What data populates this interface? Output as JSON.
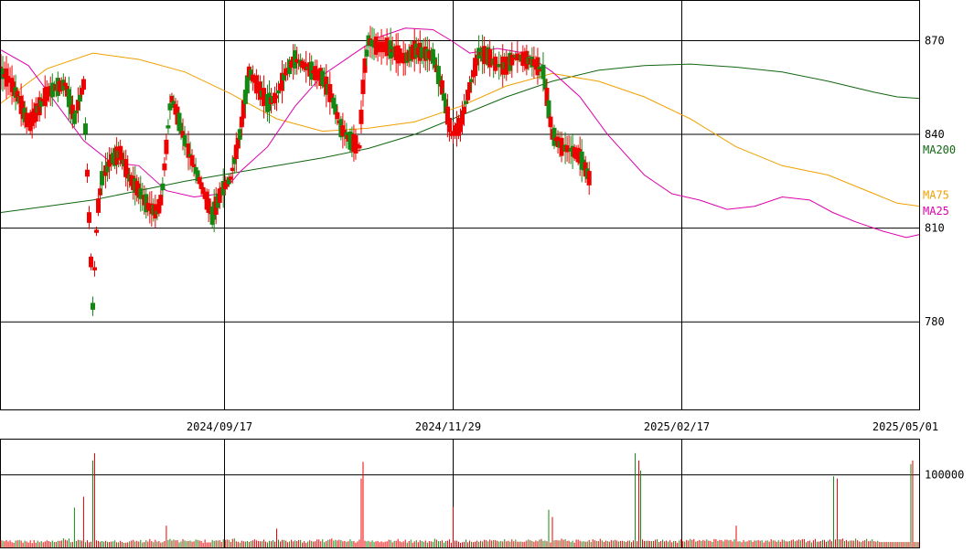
{
  "chart_data": {
    "type": "candlestick",
    "price_axis": {
      "ylim": [
        752,
        883
      ],
      "ticks": [
        870,
        840,
        810,
        780
      ]
    },
    "volume_axis": {
      "ylim": [
        0,
        150000
      ],
      "ticks": [
        100000
      ]
    },
    "date_ticks": [
      "2024/09/17",
      "2024/11/29",
      "2025/02/17",
      "2025/05/01"
    ],
    "colors": {
      "up": "#138813",
      "down": "#ee0000",
      "ma25": "#dd00aa",
      "ma75": "#f0a000",
      "ma200": "#116611",
      "grid": "#000000"
    },
    "moving_averages": [
      {
        "name": "MA200",
        "color": "#116611",
        "values": [
          [
            0,
            815
          ],
          [
            50,
            817
          ],
          [
            100,
            819
          ],
          [
            150,
            822
          ],
          [
            200,
            825
          ],
          [
            250,
            827.5
          ],
          [
            300,
            830
          ],
          [
            350,
            832.5
          ],
          [
            400,
            835.5
          ],
          [
            450,
            840
          ],
          [
            500,
            846
          ],
          [
            550,
            852
          ],
          [
            600,
            857
          ],
          [
            650,
            860.5
          ],
          [
            700,
            862
          ],
          [
            750,
            862.5
          ],
          [
            800,
            861.5
          ],
          [
            850,
            860
          ],
          [
            900,
            857
          ],
          [
            950,
            853.5
          ],
          [
            975,
            852
          ],
          [
            1000,
            851.5
          ]
        ]
      },
      {
        "name": "MA75",
        "color": "#f0a000",
        "values": [
          [
            0,
            850
          ],
          [
            50,
            861
          ],
          [
            100,
            866
          ],
          [
            150,
            864
          ],
          [
            200,
            860
          ],
          [
            250,
            853
          ],
          [
            300,
            845
          ],
          [
            350,
            841
          ],
          [
            400,
            842
          ],
          [
            450,
            844
          ],
          [
            500,
            849
          ],
          [
            550,
            855.5
          ],
          [
            600,
            859.5
          ],
          [
            650,
            857
          ],
          [
            700,
            852
          ],
          [
            750,
            845
          ],
          [
            800,
            836
          ],
          [
            850,
            830
          ],
          [
            900,
            827
          ],
          [
            950,
            821
          ],
          [
            975,
            818
          ],
          [
            1000,
            817
          ]
        ]
      },
      {
        "name": "MA25",
        "color": "#dd00aa",
        "values": [
          [
            0,
            867
          ],
          [
            30,
            862
          ],
          [
            60,
            850
          ],
          [
            90,
            838
          ],
          [
            120,
            831
          ],
          [
            150,
            830
          ],
          [
            180,
            822
          ],
          [
            210,
            820
          ],
          [
            240,
            821
          ],
          [
            260,
            828
          ],
          [
            290,
            836
          ],
          [
            320,
            849
          ],
          [
            350,
            859
          ],
          [
            380,
            865
          ],
          [
            410,
            871
          ],
          [
            440,
            874
          ],
          [
            470,
            873.5
          ],
          [
            490,
            870
          ],
          [
            510,
            866
          ],
          [
            540,
            867.5
          ],
          [
            570,
            866
          ],
          [
            600,
            860
          ],
          [
            630,
            852
          ],
          [
            660,
            840
          ],
          [
            700,
            827
          ],
          [
            730,
            821
          ],
          [
            760,
            819
          ],
          [
            790,
            816
          ],
          [
            820,
            817
          ],
          [
            850,
            820
          ],
          [
            880,
            819
          ],
          [
            905,
            815
          ],
          [
            930,
            812
          ],
          [
            960,
            809
          ],
          [
            985,
            807
          ],
          [
            1000,
            808
          ]
        ]
      }
    ],
    "ma_labels": [
      {
        "text": "MA200",
        "color": "#116611",
        "value": 835
      },
      {
        "text": "MA75",
        "color": "#f0a000",
        "value": 820.5
      },
      {
        "text": "MA25",
        "color": "#dd00aa",
        "value": 815.5
      }
    ],
    "candles_raw": "87485188377,82375883687,85374788667,74374488367,76375887577,85385488377,83385087787,73375088475,72377988087,77377987698,86397288588,84395988577,84394483785,83397488365,83375588075,75384788268,79384088978,83386588277,88386289069,79387388075,71387388668,79387387279,81397587775,85395688668,89396988067,73385088985,81386588075,82387788572,88387388376,75374988379,81373088185,84374488079,87375888180,82375888368,87376088279,85386988479,87376288068,89377388673,79386988476,88388588172,87375988068,75384488268,82386388173,86385388276,81385389180,72393289978,82393088165,86392087869,87395389265,72385788668,71384688575,75383786975,75373388468,83374088768,86373789078,88375688176,75374988268,72374988773,82377088566,81377187673,87377088075,87386289170,74384888070,74384088266,86387088476,88385288565,87387688575,81387286272,84387887172,87377288177,81377387465,87376189378,88378488072,88378287073,83376988269,88376988375,82376488277,75376489077,72374688072,84385288775,86388287269,71388388667,77389078973,77380788379,88379788066,85389288975,83380687478,77380089275,81381688075,81389188269,88399088971,80398988065,76398788576,76398188474,86398688469,82397288375,84388588069,84398588168,77388988075,81396488177,82386989066,75388488378,83389288277,85381388667,87381288171,80381288066,86381788476,77380789968,76372688670,71382988265,81380388678,81392086970,74391589074,83390589476,81390089571,89380089070,74379089867,84380188876,88379589478,88381088071,86390088174,88391288173,81380889371,81391688170,86381288470,85389388678,75378188773,86379688276,83397487477,87396889174,87387687469,87378386976,89368686971,88367988776,74370588170,77370588074,87369686468,86368085666,85379387575,79367587071,86367186962,84365886871,86366885576,84367487173,85367587566,89377787076,74367486977,86377288572,86366787168,82377088069,80379389473,80369089066,86370388070,89378789077,81368688166,81376988169,85375587766,83375888270,81387588874,82380089273,89391489269,85380988177,85388089079,81379989979,86379479080,81378088870,76376188667,75376088664,78376388576,89387188765,85389888068,88386189571,72379089866,85389689568,84380389764,83388988570,72380389772,84389288163,87389388175,89387898573,86387586170,87389789870,77387888666,76375488271,75385488065,79375488470,77375687467,76365687066,71365587162,76366888268,89366587068,79379685469,79378789272,79377887465,85388789069,85388988464,73388688672,83388888363,78388188373,81387888576,72388288274,81387588477,86378188763,76377888463,79378388564,77378488466,86376488379,87377888667,77378288569,86379189079,79378088966,72387988779,79388888167,80389488073,82389788674,83378888667,84379188773,78388288164,85389288368,72379488073,76390089277,77389988168,82389888371,83378489869,83389589170,79399388877,83389988565,81389789666,84387588473,87379489069,77379488266,83388889166,87385383567,86388387873,77388388964,83388488571,77385289764,81385089265,89388089677,77379288174,88389789175,81386188375,78387688665,74387788367,78378588076,80379587970,85389888666,72386388470,82386288467,84387688468,78386888266,83396178866,86395978877,80387888568,87388688378,77387287465,85387589872,81378889569,74379088666,77378189068,77385189373,85387189565,83388787877,84388688072,75389188769,84388488378,89392188682,80391589479,81391089577,83391088970,85389488870,85389488073,75388888276,84398989463,81388989162,89389089271,86388888375,89388188078,87388088367,75388388474,80387288364,86388588577,80387888078,81387888474,88379188271,82388089869,74388188975,71387888271,86379288574,82379088576,81378388573,72379588874,74379788166,75387088472,85387088370,88389488177,72388488370,84384783772,89380382365,82381383674,77382781564,89376182374,85381578964,87371378465,81381578066,89379378169,75380380774,81382981267,86383181162,75382883573,80382083873,72382583563,82382283974,77383685764,88387384270,88383385667,84385186567,72384488078,83385188075,82384886275,88380385372",
    "volumes_raw": "66,63,57,67,55,65,49,42,63,65,69,63,44,63,55,45,65,41,67,44,63,49,58,47,55,65,59,51,63,50,51,61,60,64,84,71,64,82,48,51,61,59,70,67,63,65,48,66,47,53,73,59,66,60,53,59,53,61,52,50,54,56,65,48,46,61,50,42,44,47,56,63,69,55,61,54,69,45,50,66,54,78,58,48,70,54,58,44,49,59,49,68,79,63,72,66,67,46,55,76,64,58,59,63,53,56,73,69,64,60,43,72,45,47,47,68,60,65,63,66,50,74,69,73,69,52,79,83,56,52,44,62,57,54,59,51,59,65,74,65,60,57,57,72,54,46,61,57,67,53,68,71,55,70,68,62,48,55,70,56,65,59,68,68,45,58,43,54,66,58,54,57,74,73,56,74,49,59,69,74,82,63,69,64,71,67,56,60,52,57,75,58,58,44,55,72,48,63,62,56,61,52,65,50,56,60,48,56,48,53,56,71,68,47,60,61,78,57,49,56,71,44,59,71,43,56,66,48,66,59,52,63,44,58,56,52,80,71,58,59,65,44,59,62,74,44,44,63,62,53,42,48,52,72,47,63,52,49,53,63,52,61,55,70,66,56,72,63,68,67,61,54,60,55,75,56,61,53,74,57,71,53,53,54,51,53,64,73,65,59,52,64,57,72,78,60,64,57,65,46,70,65,68,65,64,81,70,75,59,62,50,62,44,72,71,62,55,57,53,55,68,50,74,66,60,58,79,64,51,63,58,53,67,63,69,64,55,60,61,57,51,62,63,49,65,54,57,58,55,73,60,61,62,59,58,59,71,75,51,59,71,56,63,54,66,47,60,59,43,64,76,57,54,68,63,78,69,77,54,60,67,60,69,62,74,62,60,50,77,75,60,69,67,56,71,71,65,69,55,75,72,55,57,48,67,53,56,66,65,51,64,63,67,61,66,45,62,64,53,76,65,63,52,66,52,72,66,57,54,59,66,73,57,64,73,65,76,77,48,59,63,46,66,78,53,54,59,69,69,52,63,73,57,52,73,51,76,74,82,59,68,56,63,64,62,81,66,55,50,61,66,79,57,62,75,58,53,61"
  }
}
